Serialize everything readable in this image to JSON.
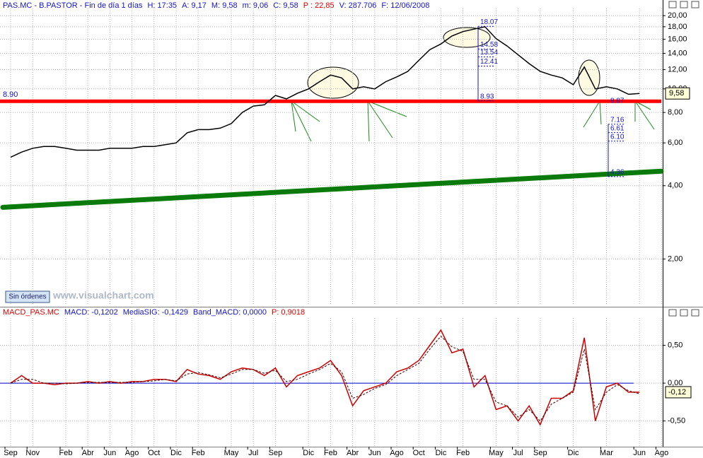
{
  "chart_data": [
    {
      "type": "line",
      "log_scale": true,
      "grid": true,
      "color": "#000000",
      "header": [
        "PAS.MC - B.PASTOR - Fin de día 1 días",
        "H: 17:35",
        "A: 9,17",
        "M: 9,58",
        "m: 9,06",
        "C: 9,58",
        "P : 22,85",
        "V: 287.706",
        "F: 12/06/2008"
      ],
      "categories": [
        "Sep",
        null,
        "Nov",
        null,
        null,
        "Feb",
        null,
        "Abr",
        null,
        "Jun",
        null,
        "Ago",
        null,
        "Oct",
        null,
        "Dic",
        null,
        "Feb",
        null,
        null,
        "May",
        null,
        "Jul",
        null,
        "Sep",
        null,
        null,
        "Dic",
        null,
        "Feb",
        null,
        "Abr",
        null,
        "Jun",
        null,
        "Ago",
        null,
        "Oct",
        null,
        "Dic",
        null,
        "Feb",
        null,
        null,
        "May",
        null,
        "Jul",
        null,
        "Sep",
        null,
        null,
        "Dic",
        null,
        null,
        "Mar",
        null,
        null,
        "Jun",
        null,
        "Ago"
      ],
      "values": [
        5.24,
        5.5,
        5.7,
        5.8,
        5.8,
        5.7,
        5.6,
        5.6,
        5.6,
        5.7,
        5.7,
        5.7,
        5.8,
        5.8,
        5.9,
        6.0,
        6.6,
        6.8,
        6.8,
        6.9,
        7.2,
        8.0,
        8.5,
        8.6,
        9.4,
        9.1,
        9.6,
        10.0,
        10.7,
        11.4,
        11.1,
        10.0,
        10.2,
        10.0,
        10.7,
        11.2,
        11.8,
        13.1,
        14.5,
        15.3,
        16.5,
        17.2,
        17.6,
        18.0,
        16.1,
        15.0,
        13.8,
        12.7,
        11.8,
        11.4,
        11.1,
        10.4,
        12.3,
        10.0,
        10.2,
        10.0,
        9.5,
        9.58,
        null,
        null
      ],
      "last_label": "9,58",
      "ylim": [
        1.29,
        21.4
      ],
      "yticks": [
        {
          "value": 20,
          "label": "20,00"
        },
        {
          "value": 18,
          "label": "18,00"
        },
        {
          "value": 16,
          "label": "16,00"
        },
        {
          "value": 14,
          "label": "14,00"
        },
        {
          "value": 12,
          "label": "12,00"
        },
        {
          "value": 10,
          "label": "10,00"
        },
        {
          "value": 8,
          "label": "8,00"
        },
        {
          "value": 6,
          "label": "6,00"
        },
        {
          "value": 4,
          "label": "4,00"
        },
        {
          "value": 2,
          "label": "2,00"
        }
      ],
      "level": {
        "value": 8.9,
        "label": "8.90",
        "color": "#ff0000"
      },
      "trend": {
        "values": [
          3.26,
          4.59
        ],
        "color": "#0a7a0a"
      },
      "fib_top": [
        {
          "value": 18.07,
          "label": "18.07"
        },
        {
          "value": 14.58,
          "label": "14.58"
        },
        {
          "value": 13.54,
          "label": "13.54"
        },
        {
          "value": 12.41,
          "label": "12.41"
        },
        {
          "value": 8.93,
          "label": "8.93"
        }
      ],
      "fib_bottom": [
        {
          "value": 7.16,
          "label": "7.16"
        },
        {
          "value": 6.61,
          "label": "6.61"
        },
        {
          "value": 6.1,
          "label": "6.10"
        },
        {
          "value": 4.36,
          "label": "4.36"
        }
      ],
      "note": {
        "value": 8.87,
        "label": "8.87"
      },
      "button": "Sin órdenes",
      "watermark": "www.visualchart.com"
    },
    {
      "type": "line",
      "grid": true,
      "header": [
        "MACD_PAS.MC",
        "MACD: -0,1202",
        "MediaSIG: -0,1429",
        "Band_MACD: 0,0000",
        "P: 0,9018"
      ],
      "series": [
        {
          "name": "MACD",
          "color": "#cc0000",
          "values": [
            0.0,
            0.1,
            0.0,
            0.0,
            -0.02,
            0.0,
            0.0,
            0.02,
            0.0,
            0.02,
            0.0,
            0.02,
            0.02,
            0.05,
            0.05,
            0.02,
            0.18,
            0.12,
            0.1,
            0.05,
            0.15,
            0.2,
            0.18,
            0.1,
            0.2,
            -0.05,
            0.1,
            0.15,
            0.2,
            0.3,
            0.1,
            -0.3,
            -0.1,
            -0.05,
            0.0,
            0.15,
            0.2,
            0.3,
            0.5,
            0.7,
            0.4,
            0.45,
            -0.05,
            0.1,
            -0.35,
            -0.3,
            -0.5,
            -0.3,
            -0.55,
            -0.2,
            -0.2,
            -0.1,
            0.6,
            -0.5,
            -0.05,
            0.0,
            -0.12,
            -0.12,
            null,
            null
          ]
        },
        {
          "name": "MediaSIG",
          "color": "#400000",
          "values": [
            0.0,
            0.05,
            0.05,
            0.0,
            0.0,
            -0.01,
            0.0,
            0.01,
            0.01,
            0.01,
            0.01,
            0.01,
            0.02,
            0.03,
            0.05,
            0.03,
            0.12,
            0.14,
            0.11,
            0.07,
            0.12,
            0.18,
            0.18,
            0.13,
            0.17,
            0.02,
            0.05,
            0.12,
            0.18,
            0.26,
            0.15,
            -0.2,
            -0.15,
            -0.07,
            -0.02,
            0.1,
            0.18,
            0.26,
            0.45,
            0.62,
            0.48,
            0.42,
            0.05,
            0.05,
            -0.25,
            -0.3,
            -0.45,
            -0.35,
            -0.5,
            -0.28,
            -0.2,
            -0.12,
            0.45,
            -0.35,
            -0.12,
            -0.02,
            -0.1,
            -0.14,
            null,
            null
          ]
        }
      ],
      "band": {
        "value": 0,
        "color": "#0000cc"
      },
      "last_label": "-0,12",
      "ylim": [
        -0.84,
        0.86
      ],
      "yticks": [
        {
          "value": 0.5,
          "label": "0,50"
        },
        {
          "value": 0,
          "label": "0,00"
        },
        {
          "value": -0.5,
          "label": "-0,50"
        }
      ]
    }
  ]
}
